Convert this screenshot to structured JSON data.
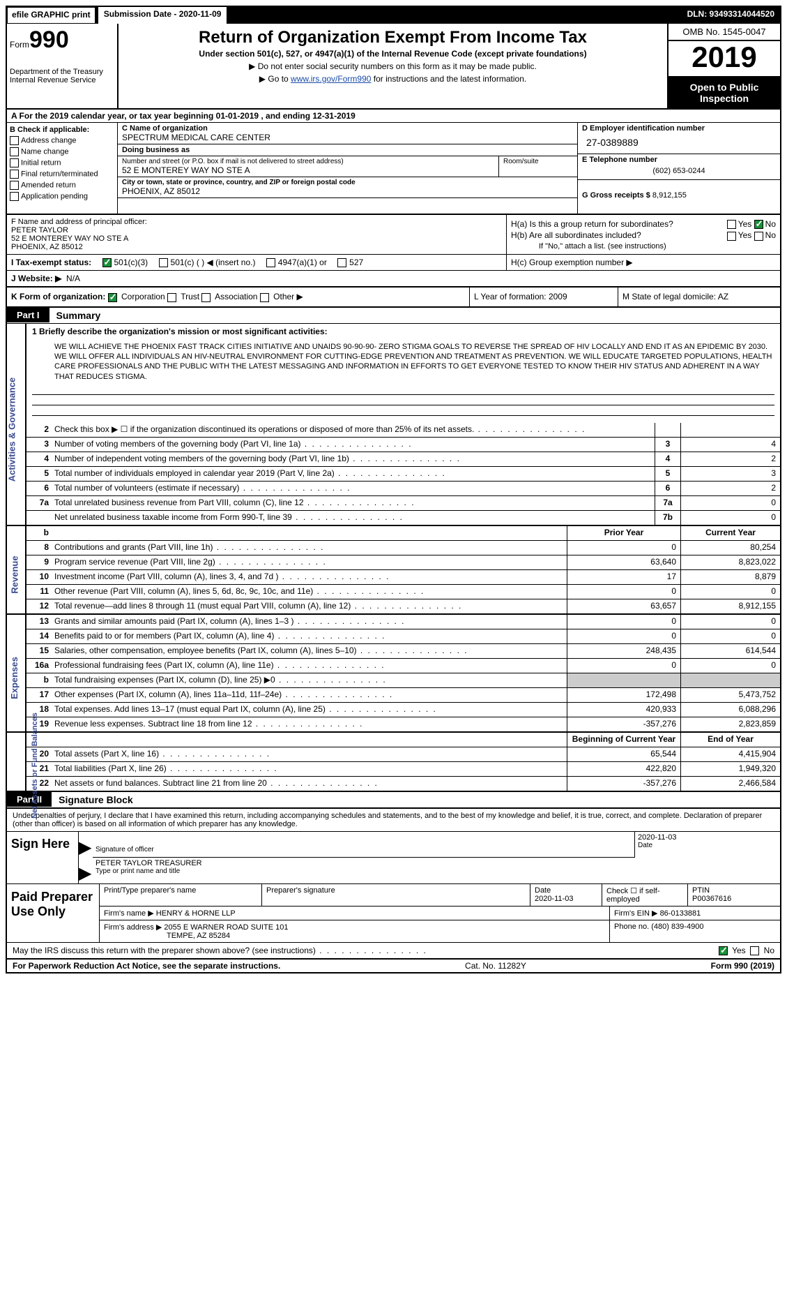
{
  "colors": {
    "black": "#000000",
    "white": "#ffffff",
    "link": "#1a4ba8",
    "section_label": "#3a4a8f",
    "check_green": "#1a8f3a",
    "shaded": "#cccccc"
  },
  "topbar": {
    "efile": "efile GRAPHIC print",
    "submission": "Submission Date - 2020-11-09",
    "dln": "DLN: 93493314044520"
  },
  "header": {
    "form_label": "Form",
    "form_number": "990",
    "title": "Return of Organization Exempt From Income Tax",
    "subtitle": "Under section 501(c), 527, or 4947(a)(1) of the Internal Revenue Code (except private foundations)",
    "note1": "Do not enter social security numbers on this form as it may be made public.",
    "note2_pre": "Go to ",
    "note2_link": "www.irs.gov/Form990",
    "note2_post": " for instructions and the latest information.",
    "dept": "Department of the Treasury\nInternal Revenue Service",
    "omb": "OMB No. 1545-0047",
    "year": "2019",
    "open": "Open to Public Inspection"
  },
  "row_a": "A   For the 2019 calendar year, or tax year beginning 01-01-2019   , and ending 12-31-2019",
  "section_b": {
    "label": "B Check if applicable:",
    "items": [
      "Address change",
      "Name change",
      "Initial return",
      "Final return/terminated",
      "Amended return",
      "Application pending"
    ]
  },
  "section_c": {
    "name_lbl": "C Name of organization",
    "name": "SPECTRUM MEDICAL CARE CENTER",
    "dba_lbl": "Doing business as",
    "dba": "",
    "street_lbl": "Number and street (or P.O. box if mail is not delivered to street address)",
    "room_lbl": "Room/suite",
    "street": "52 E MONTEREY WAY NO STE A",
    "city_lbl": "City or town, state or province, country, and ZIP or foreign postal code",
    "city": "PHOENIX, AZ  85012",
    "officer_lbl": "F Name and address of principal officer:",
    "officer": "PETER TAYLOR\n52 E MONTEREY WAY NO STE A\nPHOENIX, AZ  85012"
  },
  "section_d": {
    "ein_lbl": "D Employer identification number",
    "ein": "27-0389889",
    "tel_lbl": "E Telephone number",
    "tel": "(602) 653-0244",
    "gross_lbl": "G Gross receipts $",
    "gross": "8,912,155"
  },
  "section_h": {
    "ha": "H(a)  Is this a group return for subordinates?",
    "hb": "H(b)  Are all subordinates included?",
    "hb_note": "If \"No,\" attach a list. (see instructions)",
    "hc": "H(c)  Group exemption number ▶",
    "yes": "Yes",
    "no": "No"
  },
  "row_i": {
    "label": "I   Tax-exempt status:",
    "opts": [
      "501(c)(3)",
      "501(c) (  ) ◀ (insert no.)",
      "4947(a)(1) or",
      "527"
    ]
  },
  "row_j": {
    "label": "J  Website: ▶",
    "value": "N/A"
  },
  "row_k": {
    "label": "K Form of organization:",
    "opts": [
      "Corporation",
      "Trust",
      "Association",
      "Other ▶"
    ],
    "l": "L Year of formation: 2009",
    "m": "M State of legal domicile: AZ"
  },
  "part1": {
    "tab": "Part I",
    "title": "Summary"
  },
  "mission_lbl": "1   Briefly describe the organization's mission or most significant activities:",
  "mission": "WE WILL ACHIEVE THE PHOENIX FAST TRACK CITIES INITIATIVE AND UNAIDS 90-90-90- ZERO STIGMA GOALS TO REVERSE THE SPREAD OF HIV LOCALLY AND END IT AS AN EPIDEMIC BY 2030. WE WILL OFFER ALL INDIVIDUALS AN HIV-NEUTRAL ENVIRONMENT FOR CUTTING-EDGE PREVENTION AND TREATMENT AS PREVENTION. WE WILL EDUCATE TARGETED POPULATIONS, HEALTH CARE PROFESSIONALS AND THE PUBLIC WITH THE LATEST MESSAGING AND INFORMATION IN EFFORTS TO GET EVERYONE TESTED TO KNOW THEIR HIV STATUS AND ADHERENT IN A WAY THAT REDUCES STIGMA.",
  "governance_label": "Activities & Governance",
  "revenue_label": "Revenue",
  "expenses_label": "Expenses",
  "netassets_label": "Net Assets or Fund Balances",
  "lines_gov": [
    {
      "n": "2",
      "t": "Check this box ▶ ☐  if the organization discontinued its operations or disposed of more than 25% of its net assets.",
      "box": "",
      "v": ""
    },
    {
      "n": "3",
      "t": "Number of voting members of the governing body (Part VI, line 1a)",
      "box": "3",
      "v": "4"
    },
    {
      "n": "4",
      "t": "Number of independent voting members of the governing body (Part VI, line 1b)",
      "box": "4",
      "v": "2"
    },
    {
      "n": "5",
      "t": "Total number of individuals employed in calendar year 2019 (Part V, line 2a)",
      "box": "5",
      "v": "3"
    },
    {
      "n": "6",
      "t": "Total number of volunteers (estimate if necessary)",
      "box": "6",
      "v": "2"
    },
    {
      "n": "7a",
      "t": "Total unrelated business revenue from Part VIII, column (C), line 12",
      "box": "7a",
      "v": "0"
    },
    {
      "n": "",
      "t": "Net unrelated business taxable income from Form 990-T, line 39",
      "box": "7b",
      "v": "0"
    }
  ],
  "col_hdr": {
    "prior": "Prior Year",
    "current": "Current Year"
  },
  "lines_rev": [
    {
      "n": "8",
      "t": "Contributions and grants (Part VIII, line 1h)",
      "p": "0",
      "c": "80,254"
    },
    {
      "n": "9",
      "t": "Program service revenue (Part VIII, line 2g)",
      "p": "63,640",
      "c": "8,823,022"
    },
    {
      "n": "10",
      "t": "Investment income (Part VIII, column (A), lines 3, 4, and 7d )",
      "p": "17",
      "c": "8,879"
    },
    {
      "n": "11",
      "t": "Other revenue (Part VIII, column (A), lines 5, 6d, 8c, 9c, 10c, and 11e)",
      "p": "0",
      "c": "0"
    },
    {
      "n": "12",
      "t": "Total revenue—add lines 8 through 11 (must equal Part VIII, column (A), line 12)",
      "p": "63,657",
      "c": "8,912,155"
    }
  ],
  "lines_exp": [
    {
      "n": "13",
      "t": "Grants and similar amounts paid (Part IX, column (A), lines 1–3 )",
      "p": "0",
      "c": "0"
    },
    {
      "n": "14",
      "t": "Benefits paid to or for members (Part IX, column (A), line 4)",
      "p": "0",
      "c": "0"
    },
    {
      "n": "15",
      "t": "Salaries, other compensation, employee benefits (Part IX, column (A), lines 5–10)",
      "p": "248,435",
      "c": "614,544"
    },
    {
      "n": "16a",
      "t": "Professional fundraising fees (Part IX, column (A), line 11e)",
      "p": "0",
      "c": "0"
    },
    {
      "n": "b",
      "t": "Total fundraising expenses (Part IX, column (D), line 25) ▶0",
      "p": "",
      "c": "",
      "shaded": true
    },
    {
      "n": "17",
      "t": "Other expenses (Part IX, column (A), lines 11a–11d, 11f–24e)",
      "p": "172,498",
      "c": "5,473,752"
    },
    {
      "n": "18",
      "t": "Total expenses. Add lines 13–17 (must equal Part IX, column (A), line 25)",
      "p": "420,933",
      "c": "6,088,296"
    },
    {
      "n": "19",
      "t": "Revenue less expenses. Subtract line 18 from line 12",
      "p": "-357,276",
      "c": "2,823,859"
    }
  ],
  "col_hdr2": {
    "prior": "Beginning of Current Year",
    "current": "End of Year"
  },
  "lines_net": [
    {
      "n": "20",
      "t": "Total assets (Part X, line 16)",
      "p": "65,544",
      "c": "4,415,904"
    },
    {
      "n": "21",
      "t": "Total liabilities (Part X, line 26)",
      "p": "422,820",
      "c": "1,949,320"
    },
    {
      "n": "22",
      "t": "Net assets or fund balances. Subtract line 21 from line 20",
      "p": "-357,276",
      "c": "2,466,584"
    }
  ],
  "part2": {
    "tab": "Part II",
    "title": "Signature Block"
  },
  "sig": {
    "intro": "Under penalties of perjury, I declare that I have examined this return, including accompanying schedules and statements, and to the best of my knowledge and belief, it is true, correct, and complete. Declaration of preparer (other than officer) is based on all information of which preparer has any knowledge.",
    "sign_here": "Sign Here",
    "sig_officer_lbl": "Signature of officer",
    "date_lbl": "Date",
    "sig_date": "2020-11-03",
    "name_title": "PETER TAYLOR TREASURER",
    "name_title_lbl": "Type or print name and title"
  },
  "prep": {
    "label": "Paid Preparer Use Only",
    "r1": {
      "c1": "Print/Type preparer's name",
      "c2": "Preparer's signature",
      "c3": "Date",
      "c3v": "2020-11-03",
      "c4": "Check ☐ if self-employed",
      "c5": "PTIN",
      "c5v": "P00367616"
    },
    "r2": {
      "c1": "Firm's name    ▶",
      "c1v": "HENRY & HORNE LLP",
      "c2": "Firm's EIN ▶",
      "c2v": "86-0133881"
    },
    "r3": {
      "c1": "Firm's address ▶",
      "c1v": "2055 E WARNER ROAD SUITE 101",
      "c2": "Phone no. (480) 839-4900"
    },
    "r3b": "TEMPE, AZ  85284"
  },
  "may_irs": {
    "text": "May the IRS discuss this return with the preparer shown above? (see instructions)",
    "yes": "Yes",
    "no": "No"
  },
  "footer": {
    "left": "For Paperwork Reduction Act Notice, see the separate instructions.",
    "mid": "Cat. No. 11282Y",
    "right": "Form 990 (2019)"
  }
}
